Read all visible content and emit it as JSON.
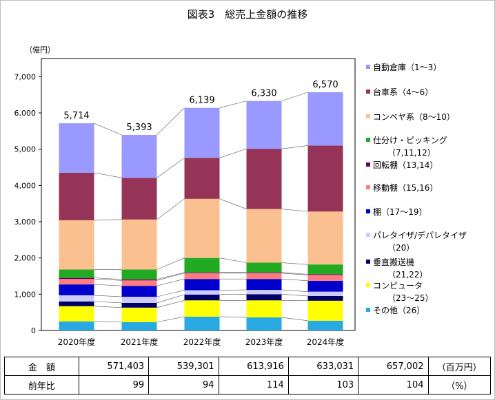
{
  "title": "図表3　総売上金額の推移",
  "chart_data": {
    "type": "bar",
    "stacked": true,
    "ylabel": "（億円）",
    "ylim": [
      0,
      7500
    ],
    "yticks": [
      0,
      1000,
      2000,
      3000,
      4000,
      5000,
      6000,
      7000
    ],
    "ytick_labels": [
      "0",
      "1,000",
      "2,000",
      "3,000",
      "4,000",
      "5,000",
      "6,000",
      "7,000"
    ],
    "categories": [
      "2020年度",
      "2021年度",
      "2022年度",
      "2023年度",
      "2024年度"
    ],
    "totals": [
      5714,
      5393,
      6139,
      6330,
      6570
    ],
    "total_labels": [
      "5,714",
      "5,393",
      "6,139",
      "6,330",
      "6,570"
    ],
    "legend_position": "right",
    "series": [
      {
        "name": "その他（26）",
        "color": "#29a9e1",
        "values": [
          250,
          230,
          380,
          360,
          270
        ]
      },
      {
        "name": "コンピュータ（23～25）",
        "color": "#ffff00",
        "values": [
          420,
          400,
          450,
          470,
          550
        ]
      },
      {
        "name": "垂直搬送機（21,22）",
        "color": "#000066",
        "values": [
          130,
          130,
          160,
          170,
          130
        ]
      },
      {
        "name": "パレタイザ/デパレタイザ（20）",
        "color": "#ccccff",
        "values": [
          170,
          170,
          120,
          120,
          120
        ]
      },
      {
        "name": "棚（17～19）",
        "color": "#0000cc",
        "values": [
          300,
          300,
          310,
          300,
          300
        ]
      },
      {
        "name": "移動棚（15,16）",
        "color": "#ff7c80",
        "values": [
          150,
          150,
          160,
          160,
          160
        ]
      },
      {
        "name": "回転棚（13,14）",
        "color": "#660066",
        "values": [
          30,
          30,
          20,
          20,
          20
        ]
      },
      {
        "name": "仕分け・ピッキング（7,11,12）",
        "color": "#22aa22",
        "values": [
          230,
          270,
          400,
          270,
          270
        ]
      },
      {
        "name": "コンベヤ系（8～10）",
        "color": "#fac090",
        "values": [
          1360,
          1380,
          1630,
          1480,
          1460
        ]
      },
      {
        "name": "台車系（4～6）",
        "color": "#953456",
        "values": [
          1310,
          1150,
          1130,
          1660,
          1820
        ]
      },
      {
        "name": "自動倉庫（1～3）",
        "color": "#9999ff",
        "values": [
          1364,
          1183,
          1379,
          1320,
          1470
        ]
      }
    ]
  },
  "legend": [
    {
      "line1": "自動倉庫（1～3）",
      "line2": "",
      "color": "#9999ff"
    },
    {
      "line1": "台車系（4～6）",
      "line2": "",
      "color": "#953456"
    },
    {
      "line1": "コンベヤ系（8～10）",
      "line2": "",
      "color": "#fac090"
    },
    {
      "line1": "仕分け・ピッキング",
      "line2": "（7,11,12）",
      "color": "#22aa22"
    },
    {
      "line1": "回転棚（13,14）",
      "line2": "",
      "color": "#660066"
    },
    {
      "line1": "移動棚（15,16）",
      "line2": "",
      "color": "#ff7c80"
    },
    {
      "line1": "棚（17～19）",
      "line2": "",
      "color": "#0000cc"
    },
    {
      "line1": "パレタイザ/デパレタイザ",
      "line2": "（20）",
      "color": "#ccccff"
    },
    {
      "line1": "垂直搬送機",
      "line2": "（21,22）",
      "color": "#000066"
    },
    {
      "line1": "コンピュータ",
      "line2": "（23～25）",
      "color": "#ffff00"
    },
    {
      "line1": "その他（26）",
      "line2": "",
      "color": "#29a9e1"
    }
  ],
  "table": {
    "rows": [
      {
        "label": "金　額",
        "values": [
          "571,403",
          "539,301",
          "613,916",
          "633,031",
          "657,002"
        ],
        "unit": "（百万円）"
      },
      {
        "label": "前年比",
        "values": [
          "99",
          "94",
          "114",
          "103",
          "104"
        ],
        "unit": "（%）"
      }
    ]
  }
}
